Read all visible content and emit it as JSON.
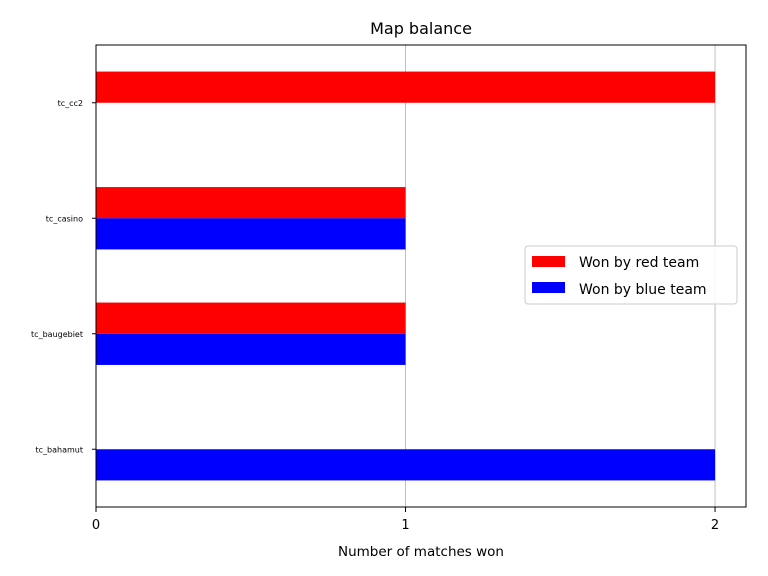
{
  "chart_data": {
    "type": "bar",
    "orientation": "horizontal",
    "title": "Map balance",
    "xlabel": "Number of matches won",
    "ylabel": "",
    "categories": [
      "tc_cc2",
      "tc_casino",
      "tc_baugebiet",
      "tc_bahamut"
    ],
    "series": [
      {
        "name": "Won by red team",
        "color": "#ff0000",
        "values": [
          2,
          1,
          1,
          0
        ]
      },
      {
        "name": "Won by blue team",
        "color": "#0000ff",
        "values": [
          0,
          1,
          1,
          2
        ]
      }
    ],
    "xlim": [
      0,
      2.1
    ],
    "xticks": [
      0,
      1,
      2
    ],
    "grid": "x",
    "legend_position": "center-right"
  }
}
